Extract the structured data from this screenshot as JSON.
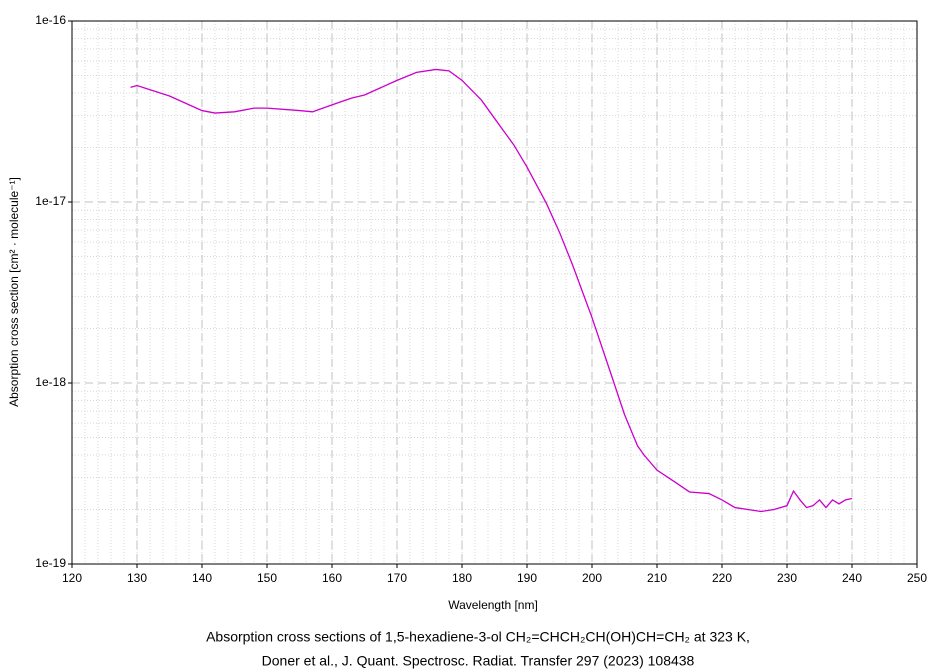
{
  "chart_data": {
    "type": "line",
    "xlabel": "Wavelength [nm]",
    "ylabel": "Absorption cross section [cm² · molecule⁻¹]",
    "caption": [
      "Absorption cross sections of 1,5-hexadiene-3-ol CH₂=CHCH₂CH(OH)CH=CH₂ at 323 K,",
      "Doner et al., J. Quant. Spectrosc. Radiat. Transfer 297 (2023) 108438"
    ],
    "xlim": [
      120,
      250
    ],
    "xticks": [
      120,
      130,
      140,
      150,
      160,
      170,
      180,
      190,
      200,
      210,
      220,
      230,
      240,
      250
    ],
    "ylim": [
      1e-19,
      1e-16
    ],
    "log_y": true,
    "grid": true,
    "yticks": [
      {
        "value": 1e-19,
        "label": "1e-19"
      },
      {
        "value": 1e-18,
        "label": "1e-18"
      },
      {
        "value": 1e-17,
        "label": "1e-17"
      },
      {
        "value": 1e-16,
        "label": "1e-16"
      }
    ],
    "series": [
      {
        "color": "#cc00cc",
        "x": [
          129,
          130,
          135,
          140,
          142,
          145,
          148,
          150,
          155,
          157,
          160,
          163,
          165,
          170,
          173,
          176,
          178,
          180,
          183,
          185,
          188,
          190,
          193,
          195,
          197,
          200,
          203,
          205,
          207,
          208,
          210,
          213,
          215,
          218,
          220,
          222,
          224,
          226,
          228,
          230,
          231,
          232,
          233,
          234,
          235,
          236,
          237,
          238,
          239,
          240
        ],
        "values": [
          4.3e-17,
          4.4e-17,
          3.85e-17,
          3.2e-17,
          3.1e-17,
          3.15e-17,
          3.3e-17,
          3.3e-17,
          3.2e-17,
          3.15e-17,
          3.44e-17,
          3.75e-17,
          3.9e-17,
          4.7e-17,
          5.2e-17,
          5.4e-17,
          5.3e-17,
          4.7e-17,
          3.65e-17,
          2.9e-17,
          2.06e-17,
          1.56e-17,
          9.8e-18,
          6.8e-18,
          4.5e-18,
          2.3e-18,
          1.1e-18,
          6.7e-19,
          4.5e-19,
          4e-19,
          3.3e-19,
          2.8e-19,
          2.5e-19,
          2.45e-19,
          2.26e-19,
          2.05e-19,
          2e-19,
          1.95e-19,
          2e-19,
          2.1e-19,
          2.53e-19,
          2.26e-19,
          2.05e-19,
          2.1e-19,
          2.26e-19,
          2.05e-19,
          2.26e-19,
          2.15e-19,
          2.26e-19,
          2.3e-19
        ]
      }
    ]
  }
}
